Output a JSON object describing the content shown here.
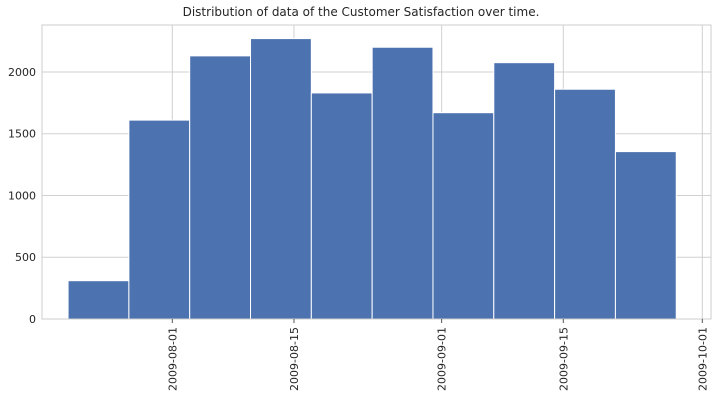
{
  "chart_data": {
    "type": "bar",
    "title": "Distribution of data of the Customer Satisfaction over time.",
    "xlabel": "",
    "ylabel": "",
    "x_axis": {
      "type": "date",
      "range": [
        "2009-07-17",
        "2009-10-02"
      ],
      "ticks": [
        "2009-08-01",
        "2009-08-15",
        "2009-09-01",
        "2009-09-15",
        "2009-10-01"
      ],
      "tick_label_rotation": "vertical"
    },
    "ylim": [
      0,
      2380
    ],
    "yticks": [
      0,
      500,
      1000,
      1500,
      2000
    ],
    "grid": true,
    "color": "#4c72b0",
    "bins": [
      {
        "start": "2009-07-20",
        "end": "2009-07-27",
        "value": 310
      },
      {
        "start": "2009-07-27",
        "end": "2009-08-03",
        "value": 1610
      },
      {
        "start": "2009-08-03",
        "end": "2009-08-10",
        "value": 2130
      },
      {
        "start": "2009-08-10",
        "end": "2009-08-17",
        "value": 2270
      },
      {
        "start": "2009-08-17",
        "end": "2009-08-24",
        "value": 1830
      },
      {
        "start": "2009-08-24",
        "end": "2009-08-31",
        "value": 2200
      },
      {
        "start": "2009-08-31",
        "end": "2009-09-07",
        "value": 1670
      },
      {
        "start": "2009-09-07",
        "end": "2009-09-14",
        "value": 2075
      },
      {
        "start": "2009-09-14",
        "end": "2009-09-21",
        "value": 1860
      },
      {
        "start": "2009-09-21",
        "end": "2009-09-28",
        "value": 1355
      }
    ]
  }
}
